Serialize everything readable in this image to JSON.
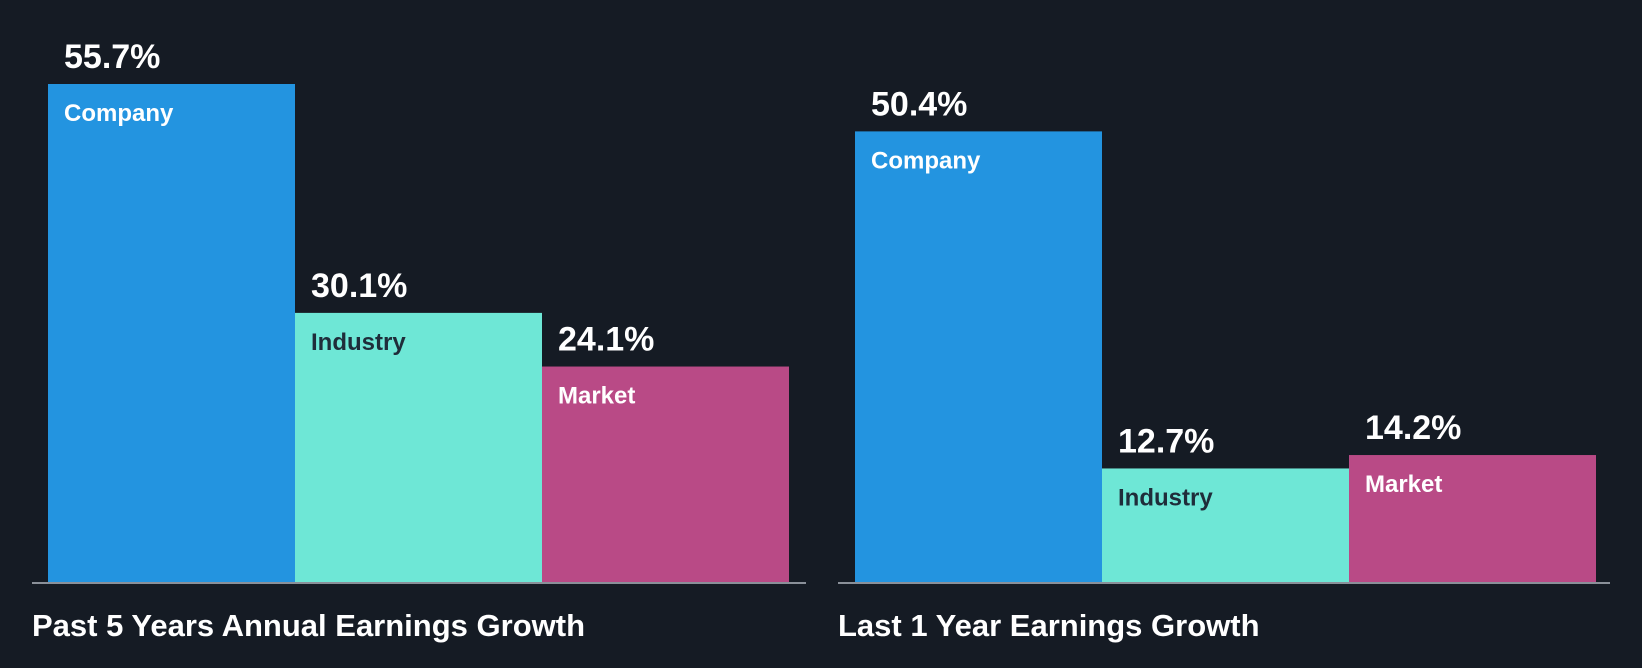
{
  "colors": {
    "background": "#151b24",
    "company": "#2394e0",
    "industry": "#6ee7d6",
    "market": "#b94a86",
    "baseline": "#8a9099",
    "label_dark": "#1f2d3a",
    "label_light": "#ffffff"
  },
  "chart_data": [
    {
      "type": "bar",
      "title": "Past 5 Years Annual Earnings Growth",
      "categories": [
        "Company",
        "Industry",
        "Market"
      ],
      "values": [
        55.7,
        30.1,
        24.1
      ],
      "value_labels": [
        "55.7%",
        "30.1%",
        "24.1%"
      ],
      "unit": "%",
      "ylim": [
        0,
        55.7
      ],
      "grid": false,
      "legend": "none"
    },
    {
      "type": "bar",
      "title": "Last 1 Year Earnings Growth",
      "categories": [
        "Company",
        "Industry",
        "Market"
      ],
      "values": [
        50.4,
        12.7,
        14.2
      ],
      "value_labels": [
        "50.4%",
        "12.7%",
        "14.2%"
      ],
      "unit": "%",
      "ylim": [
        0,
        55.7
      ],
      "grid": false,
      "legend": "none"
    }
  ]
}
